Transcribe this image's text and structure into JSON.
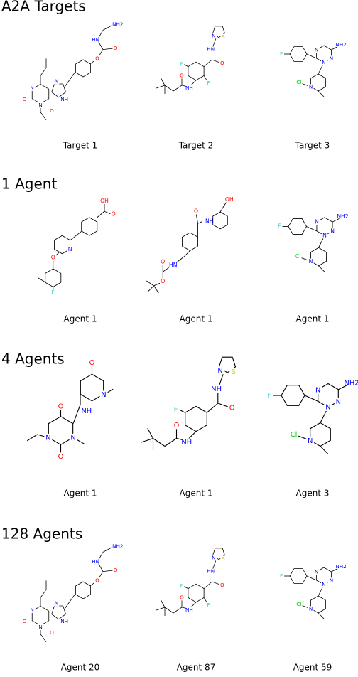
{
  "sections": [
    {
      "title": "A2A Targets",
      "items": [
        {
          "caption": "Target 1",
          "atoms": [
            "N",
            "O",
            "N",
            "O",
            "N",
            "NH",
            "O",
            "O",
            "HN",
            "NH2"
          ]
        },
        {
          "caption": "Target 2",
          "atoms": [
            "S",
            "N",
            "HN",
            "O",
            "F",
            "F",
            "NH",
            "O"
          ]
        },
        {
          "caption": "Target 3",
          "atoms": [
            "N",
            "N",
            "N",
            "NH2",
            "F",
            "N",
            "Cl"
          ]
        }
      ]
    },
    {
      "title": "1 Agent",
      "items": [
        {
          "caption": "Agent 1",
          "atoms": [
            "OH",
            "O",
            "N",
            "O",
            "F"
          ]
        },
        {
          "caption": "Agent 1",
          "atoms": [
            "OH",
            "NH",
            "O",
            "HN",
            "O",
            "O"
          ]
        },
        {
          "caption": "Agent 1",
          "atoms": [
            "N",
            "N",
            "N",
            "NH2",
            "F",
            "N",
            "Cl"
          ]
        }
      ]
    },
    {
      "title": "4 Agents",
      "items": [
        {
          "caption": "Agent 1",
          "atoms": [
            "O",
            "N",
            "NH",
            "O",
            "N",
            "O",
            "N"
          ]
        },
        {
          "caption": "Agent 1",
          "atoms": [
            "S",
            "N",
            "NH",
            "O",
            "F",
            "NH",
            "O"
          ]
        },
        {
          "caption": "Agent 3",
          "atoms": [
            "N",
            "N",
            "N",
            "NH2",
            "F",
            "N",
            "Cl"
          ]
        }
      ]
    },
    {
      "title": "128 Agents",
      "items": [
        {
          "caption": "Agent 20",
          "atoms": [
            "N",
            "O",
            "N",
            "O",
            "N",
            "NH",
            "O",
            "O",
            "HN",
            "NH2"
          ]
        },
        {
          "caption": "Agent 87",
          "atoms": [
            "S",
            "N",
            "HN",
            "O",
            "F",
            "F",
            "NH",
            "O"
          ]
        },
        {
          "caption": "Agent 59",
          "atoms": [
            "N",
            "N",
            "N",
            "NH2",
            "F",
            "N",
            "Cl"
          ]
        }
      ]
    }
  ]
}
